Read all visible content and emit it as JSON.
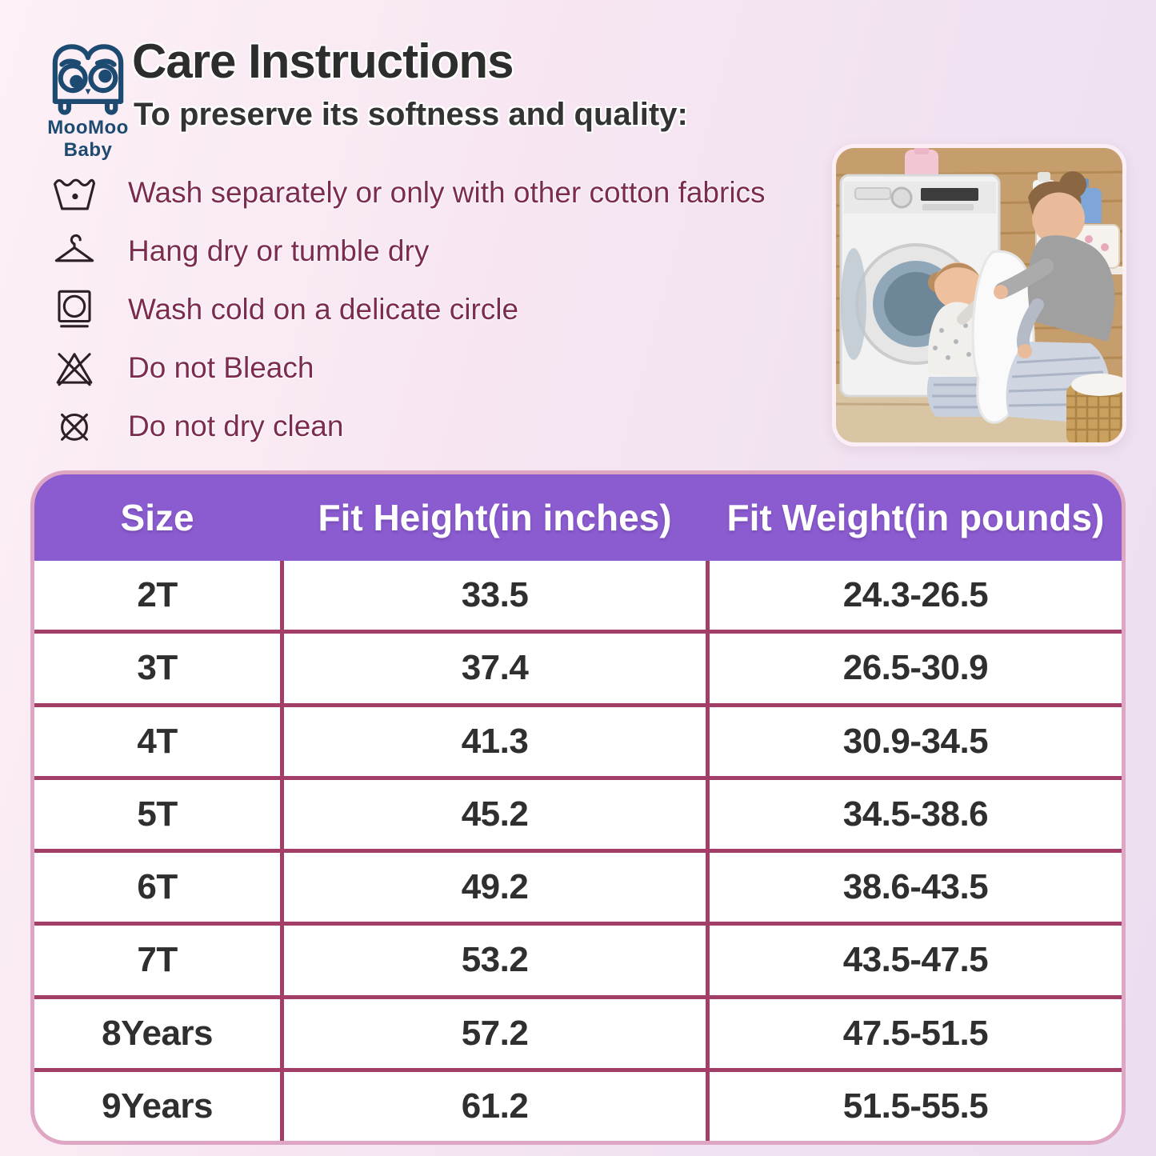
{
  "brand": {
    "name": "MooMoo Baby"
  },
  "header": {
    "title": "Care Instructions",
    "subtitle": "To preserve its softness and quality:"
  },
  "care": {
    "items": [
      {
        "icon": "washtub-icon",
        "label": "Wash separately or only with other cotton fabrics"
      },
      {
        "icon": "hanger-icon",
        "label": "Hang dry or tumble dry"
      },
      {
        "icon": "delicate-cycle-icon",
        "label": "Wash cold on a delicate circle"
      },
      {
        "icon": "do-not-bleach-icon",
        "label": "Do not Bleach"
      },
      {
        "icon": "do-not-dry-clean-icon",
        "label": "Do not dry clean"
      }
    ]
  },
  "photo": {
    "description": "Mother and child taking white laundry out of a washing machine"
  },
  "table": {
    "headers": [
      "Size",
      "Fit Height(in inches)",
      "Fit Weight(in pounds)"
    ],
    "rows": [
      [
        "2T",
        "33.5",
        "24.3-26.5"
      ],
      [
        "3T",
        "37.4",
        "26.5-30.9"
      ],
      [
        "4T",
        "41.3",
        "30.9-34.5"
      ],
      [
        "5T",
        "45.2",
        "34.5-38.6"
      ],
      [
        "6T",
        "49.2",
        "38.6-43.5"
      ],
      [
        "7T",
        "53.2",
        "43.5-47.5"
      ],
      [
        "8Years",
        "57.2",
        "47.5-51.5"
      ],
      [
        "9Years",
        "61.2",
        "51.5-55.5"
      ]
    ]
  },
  "colors": {
    "header_purple": "#8a5ccf",
    "table_line": "#a23e68",
    "table_border": "#dfa6c4",
    "care_text": "#7d2b4f",
    "brand_navy": "#1d4a70",
    "title_text": "#2d2d2d"
  }
}
